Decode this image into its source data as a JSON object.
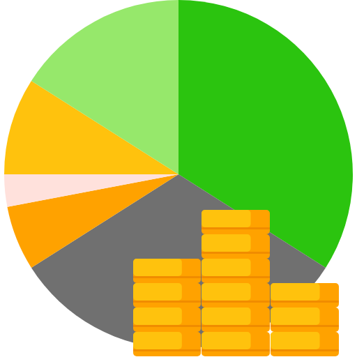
{
  "chart_data": {
    "type": "pie",
    "values": [
      34,
      32,
      6,
      3,
      9,
      16
    ],
    "colors": [
      "#2bc40f",
      "#707070",
      "#ffa200",
      "#ffe1dc",
      "#ffc20d",
      "#96e86b"
    ]
  }
}
